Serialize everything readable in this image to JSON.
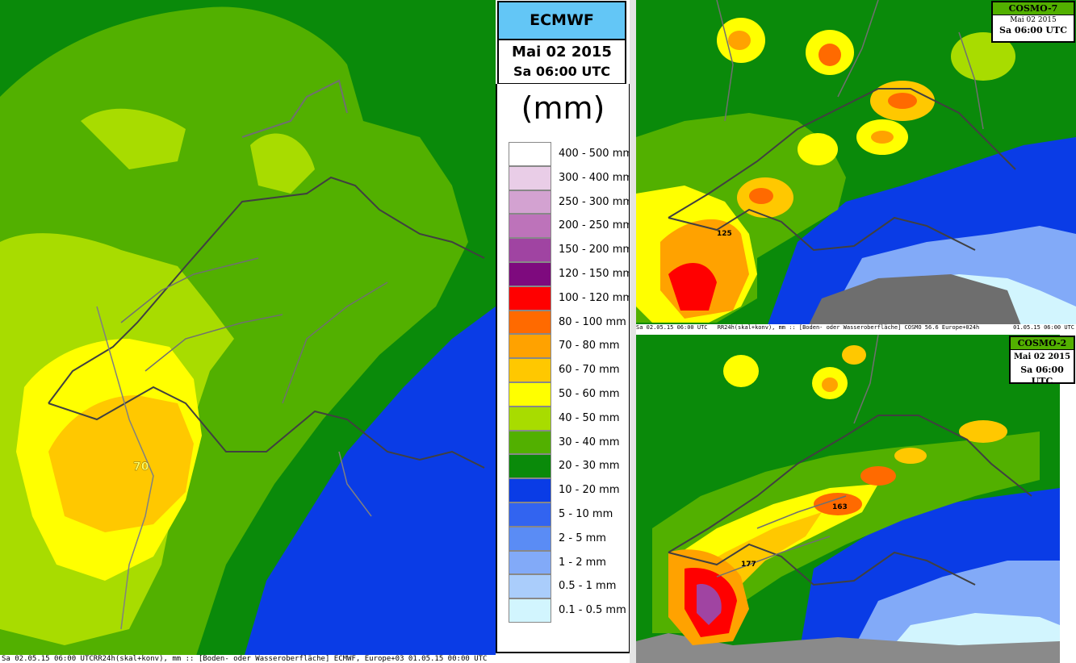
{
  "ecmwf": {
    "title": "ECMWF",
    "date": "Mai 02 2015",
    "time": "Sa 06:00 UTC",
    "max_label": "70",
    "footer": "Sa 02.05.15 06:00 UTCRR24h(skal+konv), mm :: [Boden- oder Wasseroberfläche] ECMWF, Europe+03 01.05.15 00:00 UTC"
  },
  "legend": {
    "unit": "(mm)",
    "items": [
      {
        "label": "400 - 500 mm",
        "color": "#ffffff"
      },
      {
        "label": "300 - 400 mm",
        "color": "#e9cde7"
      },
      {
        "label": "250 - 300 mm",
        "color": "#d3a2d1"
      },
      {
        "label": "200 - 250 mm",
        "color": "#bd73ba"
      },
      {
        "label": "150 - 200 mm",
        "color": "#a044a2"
      },
      {
        "label": "120 - 150 mm",
        "color": "#7e0a7e"
      },
      {
        "label": "100 - 120 mm",
        "color": "#ff0000"
      },
      {
        "label": "80 - 100 mm",
        "color": "#ff6a00"
      },
      {
        "label": "70 - 80 mm",
        "color": "#ffa200"
      },
      {
        "label": "60 - 70 mm",
        "color": "#ffc800"
      },
      {
        "label": "50 - 60 mm",
        "color": "#ffff00"
      },
      {
        "label": "40 - 50 mm",
        "color": "#a8dc00"
      },
      {
        "label": "30 - 40 mm",
        "color": "#52b000"
      },
      {
        "label": "20 - 30 mm",
        "color": "#0a8a0a"
      },
      {
        "label": "10 - 20 mm",
        "color": "#0a3ce6"
      },
      {
        "label": "5 - 10 mm",
        "color": "#3264f0"
      },
      {
        "label": "2 - 5 mm",
        "color": "#5a8cf5"
      },
      {
        "label": "1 - 2 mm",
        "color": "#82aaf8"
      },
      {
        "label": "0.5 - 1 mm",
        "color": "#aacdfb"
      },
      {
        "label": "0.1 - 0.5 mm",
        "color": "#d2f5fe"
      }
    ]
  },
  "cosmo7": {
    "title": "COSMO-7",
    "date": "Mai 02 2015",
    "time": "Sa 06:00 UTC",
    "max_label": "125",
    "footer_left": "Sa 02.05.15 06:00 UTC",
    "footer_mid": "RR24h(skal+konv), mm :: [Boden- oder Wasseroberfläche] COSMO 56.6 Europe+024h",
    "footer_right": "01.05.15 06:00 UTC",
    "title_color": "#52b000"
  },
  "cosmo2": {
    "title": "COSMO-2",
    "date": "Mai 02 2015",
    "time": "Sa 06:00 UTC",
    "label_a": "163",
    "label_b": "177",
    "title_color": "#52b000"
  }
}
